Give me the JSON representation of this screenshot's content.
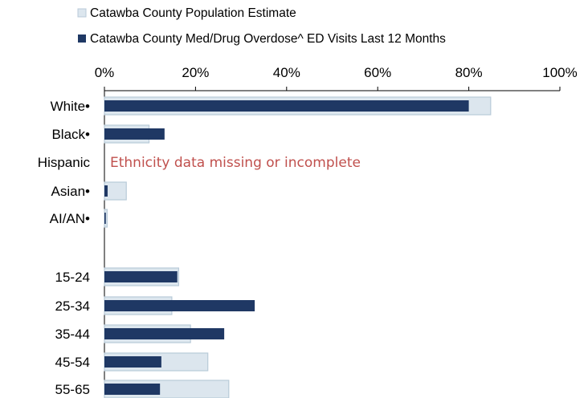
{
  "chart_data": {
    "type": "bar",
    "orientation": "horizontal",
    "categories": [
      "White•",
      "Black•",
      "Hispanic",
      "Asian•",
      "AI/AN•",
      "15-24",
      "25-34",
      "35-44",
      "45-54",
      "55-65"
    ],
    "series": [
      {
        "name": "Catawba County Population Estimate",
        "color": "#dce6ee",
        "border": "#b8cad8",
        "values": [
          84.8,
          9.8,
          null,
          4.8,
          0.6,
          16.3,
          14.8,
          18.9,
          22.7,
          27.3
        ]
      },
      {
        "name": "Catawba County Med/Drug Overdose^ ED Visits Last 12 Months",
        "color": "#1f3864",
        "values": [
          80.0,
          13.2,
          null,
          0.7,
          0.3,
          16.0,
          33.0,
          26.3,
          12.5,
          12.2
        ]
      }
    ],
    "xlim": [
      0,
      100
    ],
    "x_ticks": [
      "0%",
      "20%",
      "40%",
      "60%",
      "80%",
      "100%"
    ],
    "x_axis_position": "top",
    "legend_position": "top",
    "grid": false,
    "annotations": [
      {
        "category": "Hispanic",
        "text": "Ethnicity data missing or incomplete",
        "color": "#c0504d"
      }
    ]
  }
}
